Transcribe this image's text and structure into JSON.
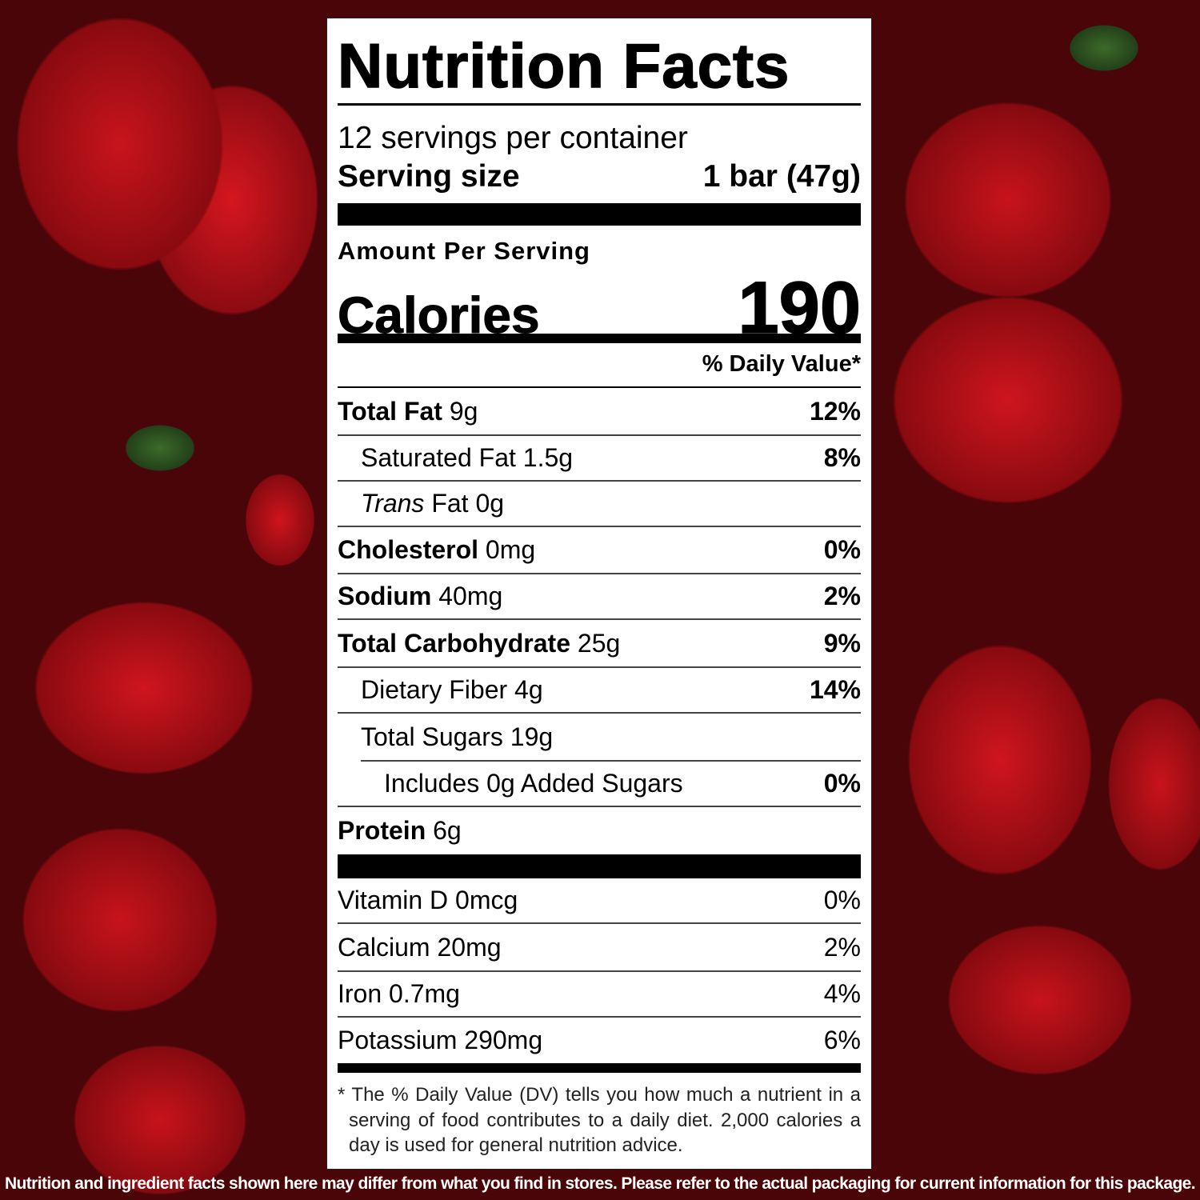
{
  "label": {
    "title": "Nutrition Facts",
    "servings_per_container": "12 servings per container",
    "serving_size_label": "Serving size",
    "serving_size_value": "1 bar (47g)",
    "amount_per_serving": "Amount Per Serving",
    "calories_label": "Calories",
    "calories_value": "190",
    "daily_value_header": "% Daily Value*",
    "nutrients": [
      {
        "name": "Total Fat",
        "amount": "9g",
        "dv": "12%"
      },
      {
        "name": "Saturated Fat",
        "amount": "1.5g",
        "dv": "8%"
      },
      {
        "name": "Trans",
        "name_suffix": "Fat",
        "amount": "0g",
        "dv": ""
      },
      {
        "name": "Cholesterol",
        "amount": "0mg",
        "dv": "0%"
      },
      {
        "name": "Sodium",
        "amount": "40mg",
        "dv": "2%"
      },
      {
        "name": "Total Carbohydrate",
        "amount": "25g",
        "dv": "9%"
      },
      {
        "name": "Dietary Fiber",
        "amount": "4g",
        "dv": "14%"
      },
      {
        "name": "Total Sugars",
        "amount": "19g",
        "dv": ""
      },
      {
        "name": "Includes 0g Added Sugars",
        "amount": "",
        "dv": "0%"
      },
      {
        "name": "Protein",
        "amount": "6g",
        "dv": ""
      }
    ],
    "vitamins": [
      {
        "text": "Vitamin D 0mcg",
        "dv": "0%"
      },
      {
        "text": "Calcium 20mg",
        "dv": "2%"
      },
      {
        "text": "Iron 0.7mg",
        "dv": "4%"
      },
      {
        "text": "Potassium 290mg",
        "dv": "6%"
      }
    ],
    "footnote": "* The % Daily Value (DV) tells you how much a nutrient in a serving of food contributes to a daily diet. 2,000 calories a day is used for general nutrition advice."
  },
  "disclaimer": "Nutrition and ingredient facts shown here may differ from what you find in stores. Please refer to the actual packaging for current information for this package."
}
